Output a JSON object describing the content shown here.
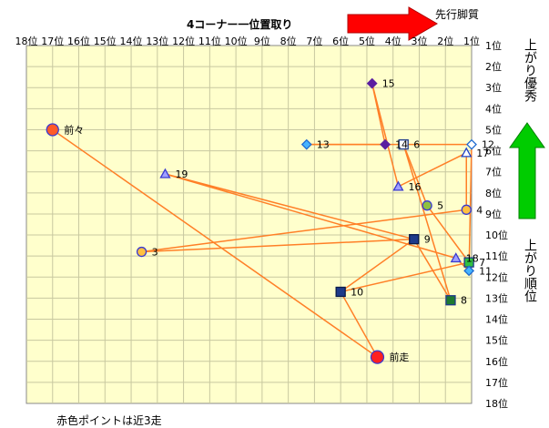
{
  "chart_data": {
    "type": "scatter",
    "title": "4コーナー一位置取り",
    "x_axis": {
      "reversed": true,
      "range": [
        1,
        18
      ],
      "tick_labels": [
        "18位",
        "17位",
        "16位",
        "15位",
        "14位",
        "13位",
        "12位",
        "11位",
        "10位",
        "9位",
        "8位",
        "7位",
        "6位",
        "5位",
        "4位",
        "3位",
        "2位",
        "1位"
      ]
    },
    "y_axis": {
      "reversed": true,
      "range": [
        1,
        18
      ],
      "tick_labels": [
        "1位",
        "2位",
        "3位",
        "4位",
        "5位",
        "6位",
        "7位",
        "8位",
        "9位",
        "10位",
        "11位",
        "12位",
        "13位",
        "14位",
        "15位",
        "16位",
        "17位",
        "18位"
      ]
    },
    "grid": true,
    "background_color": "#ffffcc",
    "line_color": "#ff7f27",
    "top_arrow": {
      "label": "先行脚質",
      "color": "#ff0000"
    },
    "right_arrow": {
      "color": "#00c800"
    },
    "right_labels": [
      "上がり優秀",
      "上がり順位"
    ],
    "footnote": "赤色ポイントは近3走",
    "points": [
      {
        "label": "前々",
        "x": 17.0,
        "y": 5.0,
        "marker": "circle",
        "fill": "#ff5a28",
        "stroke": "#3a3ad0",
        "size": 6.5,
        "label_text": true
      },
      {
        "label": "3",
        "x": 13.6,
        "y": 10.8,
        "marker": "circle",
        "fill": "#ffc040",
        "stroke": "#3a3ad0",
        "size": 5
      },
      {
        "label": "前走",
        "x": 4.6,
        "y": 15.8,
        "marker": "circle",
        "fill": "#ff2020",
        "stroke": "#3a3ad0",
        "size": 7
      },
      {
        "label": "4",
        "x": 1.2,
        "y": 8.8,
        "marker": "circle",
        "fill": "#ffc040",
        "stroke": "#3a3ad0",
        "size": 5
      },
      {
        "label": "5",
        "x": 2.7,
        "y": 8.6,
        "marker": "circle",
        "fill": "#90c040",
        "stroke": "#3a3ad0",
        "size": 5
      },
      {
        "label": "15",
        "x": 4.8,
        "y": 2.8,
        "marker": "diamond",
        "fill": "#5a1ea0",
        "stroke": "#5a1ea0",
        "size": 5
      },
      {
        "label": "14",
        "x": 4.3,
        "y": 5.7,
        "marker": "diamond",
        "fill": "#5a1ea0",
        "stroke": "#5a1ea0",
        "size": 5
      },
      {
        "label": "6",
        "x": 3.6,
        "y": 5.7,
        "marker": "square",
        "fill": "#ffffff",
        "stroke": "#1e3a8a",
        "size": 5
      },
      {
        "label": "13",
        "x": 7.3,
        "y": 5.7,
        "marker": "diamond",
        "fill": "#46b4ff",
        "stroke": "#1e6ad0",
        "size": 5
      },
      {
        "label": "12",
        "x": 1.0,
        "y": 5.7,
        "marker": "diamond",
        "fill": "#ffffff",
        "stroke": "#1e6ad0",
        "size": 5
      },
      {
        "label": "17",
        "x": 1.2,
        "y": 6.1,
        "marker": "triangle",
        "fill": "#ffffff",
        "stroke": "#1e40c8",
        "size": 5
      },
      {
        "label": "16",
        "x": 3.8,
        "y": 7.7,
        "marker": "triangle",
        "fill": "#a0a0ff",
        "stroke": "#3a3ad0",
        "size": 5
      },
      {
        "label": "19",
        "x": 12.7,
        "y": 7.1,
        "marker": "triangle",
        "fill": "#a0a0ff",
        "stroke": "#3a3ad0",
        "size": 5
      },
      {
        "label": "9",
        "x": 3.2,
        "y": 10.2,
        "marker": "square",
        "fill": "#1e3a8a",
        "stroke": "#0a1a4a",
        "size": 5
      },
      {
        "label": "18",
        "x": 1.6,
        "y": 11.1,
        "marker": "triangle",
        "fill": "#a0a0ff",
        "stroke": "#3a3ad0",
        "size": 5
      },
      {
        "label": "7",
        "x": 1.1,
        "y": 11.3,
        "marker": "square",
        "fill": "#30c040",
        "stroke": "#1e3a8a",
        "size": 5
      },
      {
        "label": "11",
        "x": 1.1,
        "y": 11.7,
        "marker": "diamond",
        "fill": "#46b4ff",
        "stroke": "#1e6ad0",
        "size": 5
      },
      {
        "label": "10",
        "x": 6.0,
        "y": 12.7,
        "marker": "square",
        "fill": "#1e3a8a",
        "stroke": "#0a1a4a",
        "size": 5
      },
      {
        "label": "8",
        "x": 1.8,
        "y": 13.1,
        "marker": "square",
        "fill": "#1e7a30",
        "stroke": "#1e3a8a",
        "size": 5
      }
    ],
    "path": [
      "前々",
      "前走",
      "10",
      "9",
      "3",
      "4",
      "17",
      "16",
      "15",
      "14",
      "13",
      "12",
      "11",
      "18",
      "19",
      "9",
      "8",
      "6",
      "5",
      "7",
      "10"
    ]
  }
}
